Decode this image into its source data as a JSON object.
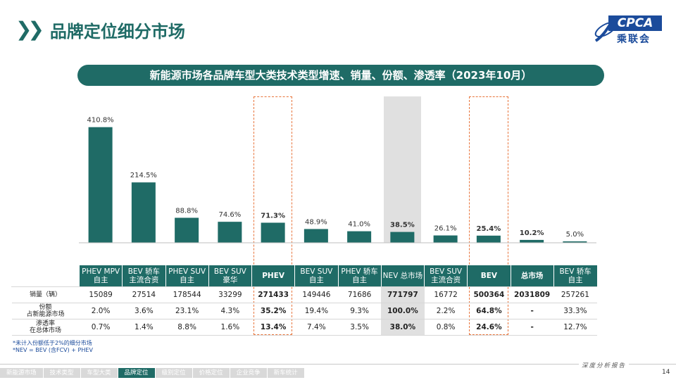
{
  "header": {
    "title": "品牌定位细分市场"
  },
  "logo": {
    "text": "CPCA",
    "sub": "乘联会"
  },
  "banner": {
    "title": "新能源市场各品牌车型大类技术类型增速、销量、份额、渗透率（2023年10月）"
  },
  "colors": {
    "primary": "#1f6b66",
    "highlight": "#e8743b",
    "nev_shade": "#e0e0e0",
    "logo": "#1b4b9b"
  },
  "highlight_columns": [
    4,
    9
  ],
  "shaded_column": 7,
  "chart_data": {
    "type": "bar",
    "categories": [
      "PHEV MPV 自主",
      "BEV 轿车 主流合资",
      "PHEV SUV 自主",
      "BEV SUV 豪华",
      "PHEV",
      "BEV SUV 自主",
      "PHEV 轿车 自主",
      "NEV 总市场",
      "BEV SUV 主流合资",
      "BEV",
      "总市场",
      "BEV 轿车 自主"
    ],
    "values": [
      410.8,
      214.5,
      88.8,
      74.6,
      71.3,
      48.9,
      41.0,
      38.5,
      26.1,
      25.4,
      10.2,
      5.0
    ],
    "value_labels": [
      "410.8%",
      "214.5%",
      "88.8%",
      "74.6%",
      "71.3%",
      "48.9%",
      "41.0%",
      "38.5%",
      "26.1%",
      "25.4%",
      "10.2%",
      "5.0%"
    ],
    "bold_labels": [
      4,
      7,
      9,
      10
    ],
    "ylim": [
      0,
      450
    ],
    "grid": false
  },
  "table": {
    "headers": [
      [
        "PHEV  MPV",
        "自主"
      ],
      [
        "BEV 轿车",
        "主流合资"
      ],
      [
        "PHEV  SUV",
        "自主"
      ],
      [
        "BEV SUV",
        "豪华"
      ],
      [
        "PHEV",
        ""
      ],
      [
        "BEV SUV",
        "自主"
      ],
      [
        "PHEV 轿车",
        "自主"
      ],
      [
        "NEV 总市场",
        ""
      ],
      [
        "BEV SUV",
        "主流合资"
      ],
      [
        "BEV",
        ""
      ],
      [
        "总市场",
        ""
      ],
      [
        "BEV 轿车",
        "自主"
      ]
    ],
    "bold_header_cols": [
      4,
      9,
      10
    ],
    "rows": [
      {
        "label": [
          "销量（辆）"
        ],
        "values": [
          "15089",
          "27514",
          "178544",
          "33299",
          "271433",
          "149446",
          "71686",
          "771797",
          "16772",
          "500364",
          "2031809",
          "257261"
        ]
      },
      {
        "label": [
          "份额",
          "占新能源市场"
        ],
        "values": [
          "2.0%",
          "3.6%",
          "23.1%",
          "4.3%",
          "35.2%",
          "19.4%",
          "9.3%",
          "100.0%",
          "2.2%",
          "64.8%",
          "-",
          "33.3%"
        ]
      },
      {
        "label": [
          "渗透率",
          "在总体市场"
        ],
        "values": [
          "0.7%",
          "1.4%",
          "8.8%",
          "1.6%",
          "13.4%",
          "7.4%",
          "3.5%",
          "38.0%",
          "0.8%",
          "24.6%",
          "-",
          "12.7%"
        ]
      }
    ],
    "bold_cols": [
      4,
      7,
      9,
      10
    ]
  },
  "notes": [
    "*未计入份额低于2%的细分市场",
    "*NEV = BEV (含FCV) + PHEV"
  ],
  "footer": {
    "nav": [
      "新能源市场",
      "技术类型",
      "车型大类",
      "品牌定位",
      "级别定位",
      "价格定位",
      "企业竞争",
      "新车统计"
    ],
    "active_nav": 3,
    "tag": "深度分析报告",
    "page": "14"
  }
}
